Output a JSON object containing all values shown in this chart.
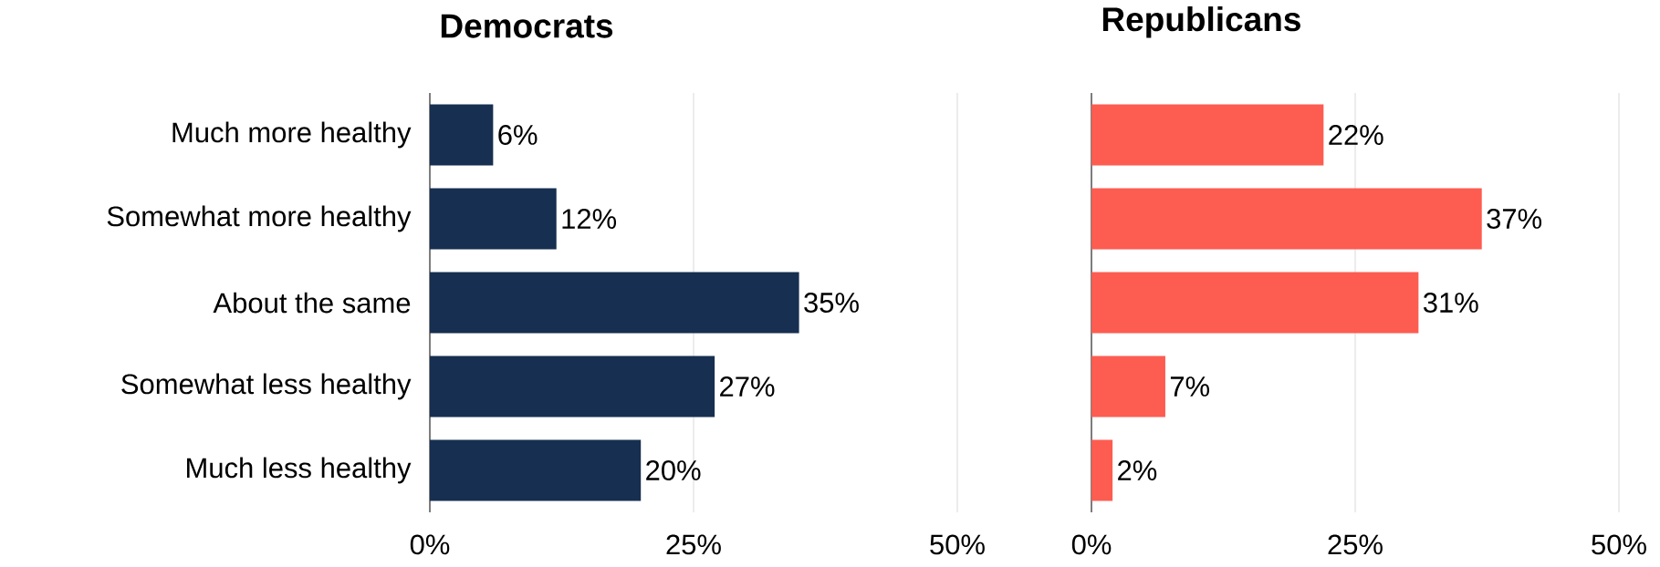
{
  "chart_data": [
    {
      "type": "bar",
      "orientation": "horizontal",
      "title": "Democrats",
      "categories": [
        "Much more healthy",
        "Somewhat more healthy",
        "About the same",
        "Somewhat less healthy",
        "Much less healthy"
      ],
      "series": [
        {
          "color": "#172f50",
          "values": [
            6,
            12,
            35,
            27,
            20
          ],
          "value_labels": [
            "6%",
            "12%",
            "35%",
            "27%",
            "20%"
          ]
        }
      ],
      "xlim": [
        0,
        50
      ],
      "xticks": [
        {
          "value": 0,
          "label": "0%"
        },
        {
          "value": 25,
          "label": "25%"
        },
        {
          "value": 50,
          "label": "50%"
        }
      ],
      "grid": "x"
    },
    {
      "type": "bar",
      "orientation": "horizontal",
      "title": "Republicans",
      "categories": [
        null,
        null,
        null,
        null,
        null
      ],
      "series": [
        {
          "color": "#fd5c51",
          "values": [
            22,
            37,
            31,
            7,
            2
          ],
          "value_labels": [
            "22%",
            "37%",
            "31%",
            "7%",
            "2%"
          ]
        }
      ],
      "xlim": [
        0,
        50
      ],
      "xticks": [
        {
          "value": 0,
          "label": "0%"
        },
        {
          "value": 25,
          "label": "25%"
        },
        {
          "value": 50,
          "label": "50%"
        }
      ],
      "grid": "x",
      "tick_labels": "x"
    }
  ]
}
